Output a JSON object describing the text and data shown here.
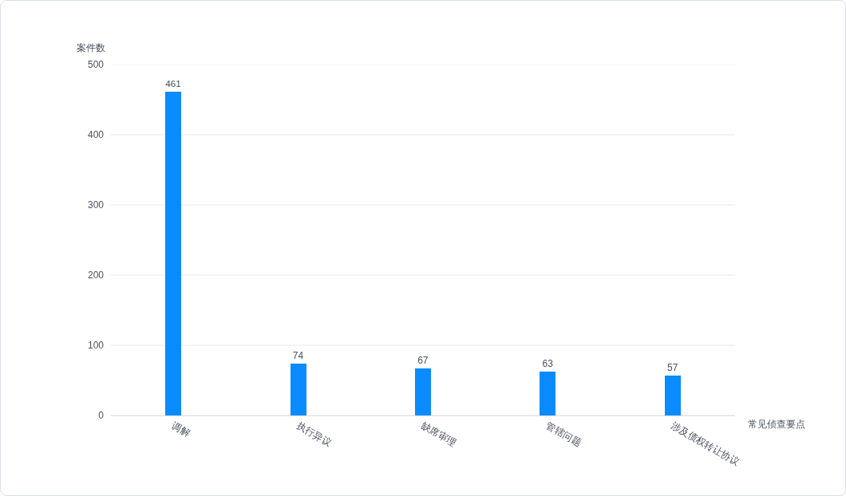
{
  "chart_data": {
    "type": "bar",
    "xlabel": "常见侦查要点",
    "ylabel": "案件数",
    "categories": [
      "调解",
      "执行异议",
      "缺席审理",
      "管辖问题",
      "涉及债权转让协议"
    ],
    "values": [
      461,
      74,
      67,
      63,
      57
    ],
    "color": "#0a8bff",
    "ylim": [
      0,
      500
    ],
    "yticks": [
      0,
      100,
      200,
      300,
      400,
      500
    ],
    "grid": "y",
    "data_labels": true
  }
}
